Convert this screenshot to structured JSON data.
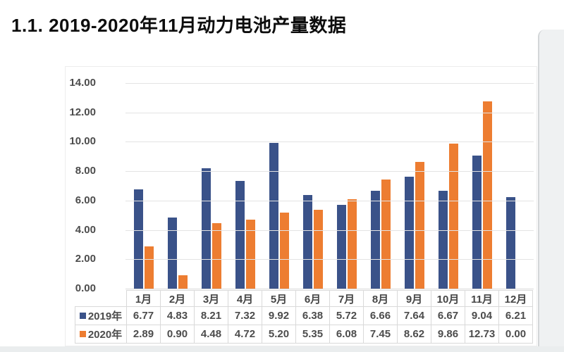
{
  "page": {
    "title": "1.1. 2019-2020年11月动力电池产量数据"
  },
  "chart_data": {
    "type": "bar",
    "title": "1.1. 2019-2020年11月动力电池产量数据",
    "categories": [
      "1月",
      "2月",
      "3月",
      "4月",
      "5月",
      "6月",
      "7月",
      "8月",
      "9月",
      "10月",
      "11月",
      "12月"
    ],
    "series": [
      {
        "name": "2019年",
        "color": "#3A5289",
        "values": [
          6.77,
          4.83,
          8.21,
          7.32,
          9.92,
          6.38,
          5.72,
          6.66,
          7.64,
          6.67,
          9.04,
          6.21
        ]
      },
      {
        "name": "2020年",
        "color": "#ED7D31",
        "values": [
          2.89,
          0.9,
          4.48,
          4.72,
          5.2,
          5.35,
          6.08,
          7.45,
          8.62,
          9.86,
          12.73,
          0.0
        ]
      }
    ],
    "ylim": [
      0,
      14
    ],
    "ytick_step": 2,
    "ytick_labels": [
      "0.00",
      "2.00",
      "4.00",
      "6.00",
      "8.00",
      "10.00",
      "12.00",
      "14.00"
    ],
    "grid": true,
    "xlabel": "",
    "ylabel": "",
    "legend_position": "data-table-row-headers",
    "data_table": true,
    "value_format": "0.00"
  },
  "colors": {
    "series_2019": "#3A5289",
    "series_2020": "#ED7D31",
    "gridline": "#e3e3e3",
    "table_border": "#d9d9d9",
    "axis_text": "#4c4c4c",
    "title_text": "#0d0d0d",
    "background": "#ffffff",
    "window_strip": "#eff1f2"
  }
}
